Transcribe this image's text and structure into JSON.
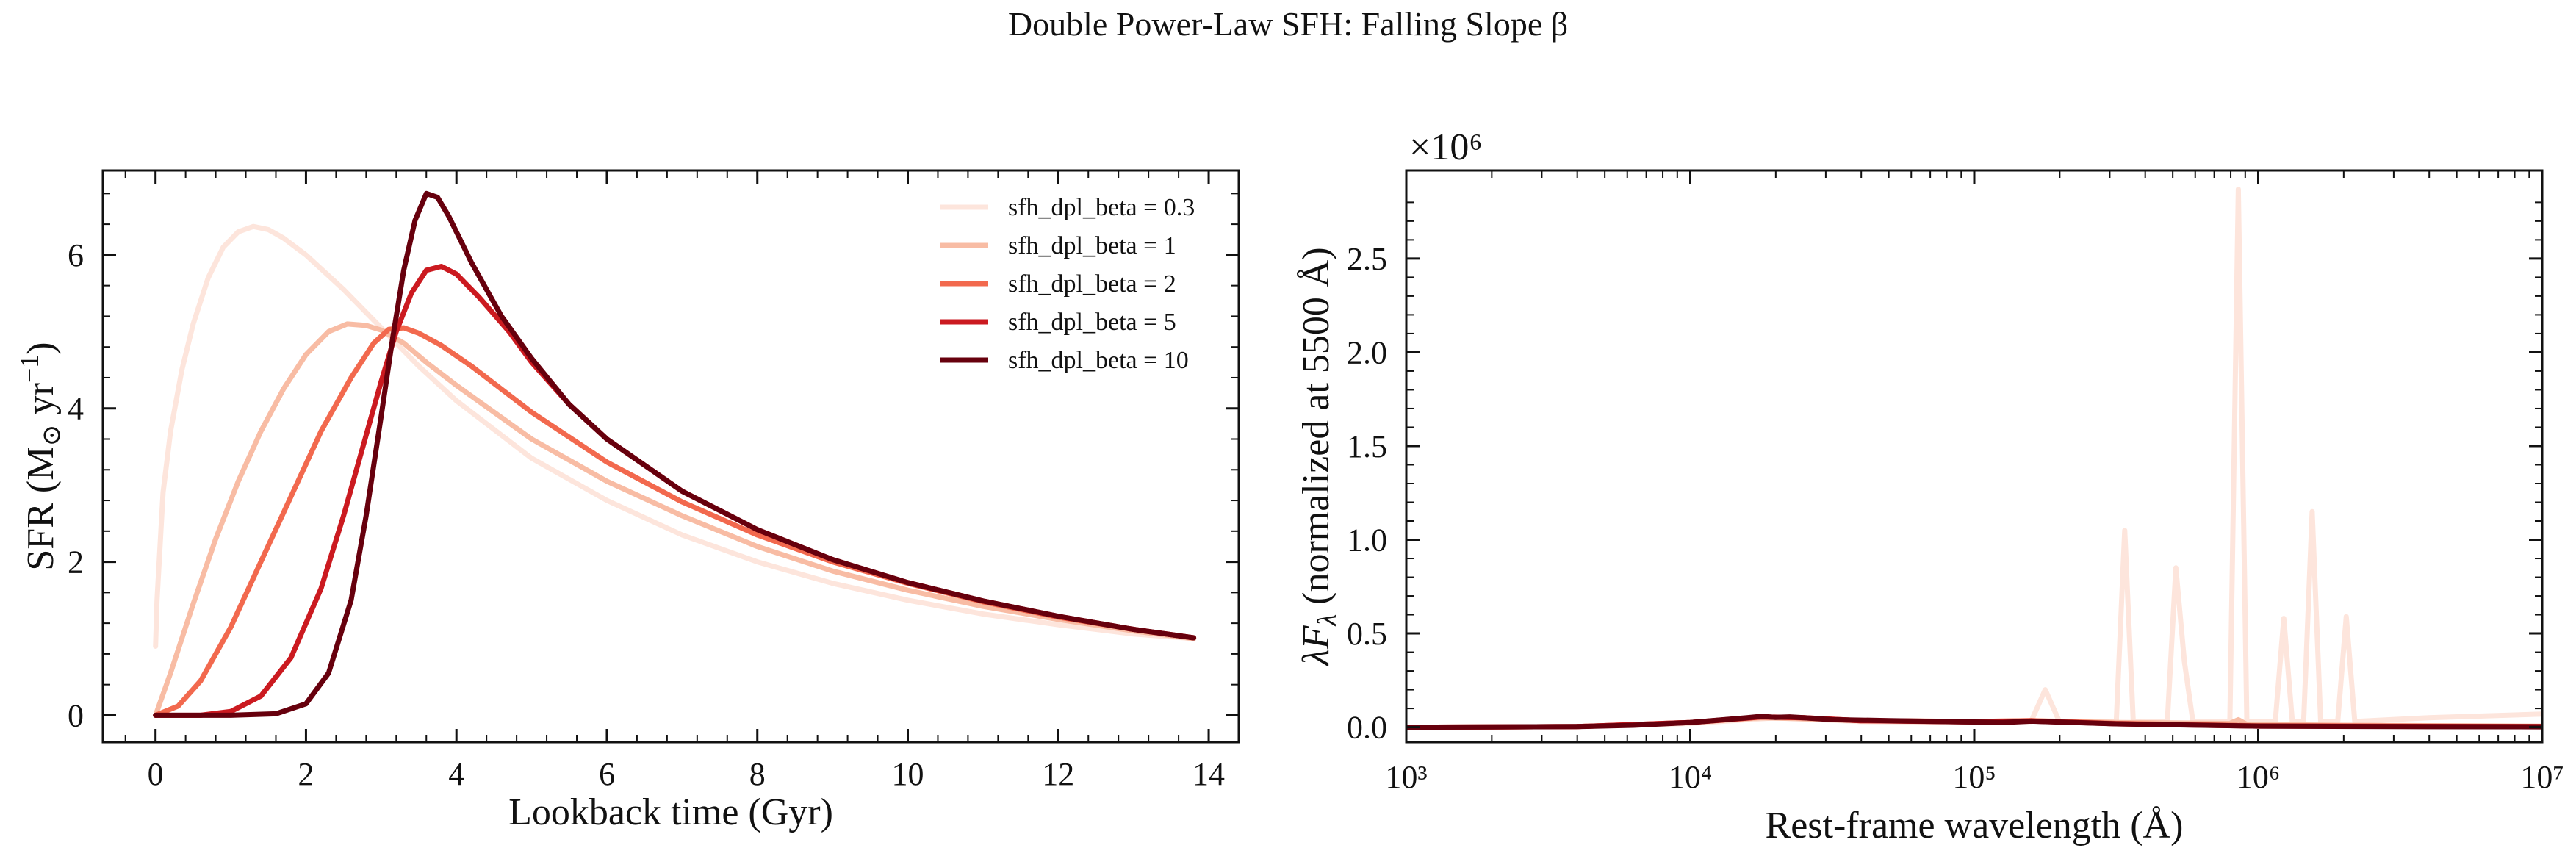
{
  "figure": {
    "suptitle": "Double Power-Law SFH: Falling Slope β"
  },
  "chart_data": [
    {
      "type": "line",
      "xlabel": "Lookback time (Gyr)",
      "ylabel_main": "SFR (M",
      "ylabel_sub": "⊙",
      "ylabel_unit": " yr",
      "ylabel_sup": "−1",
      "ylabel_close": ")",
      "xlim": [
        -0.7,
        14.4
      ],
      "ylim": [
        -0.35,
        7.1
      ],
      "xticks": [
        0,
        2,
        4,
        6,
        8,
        10,
        12,
        14
      ],
      "xtick_labels": [
        "0",
        "2",
        "4",
        "6",
        "8",
        "10",
        "12",
        "14"
      ],
      "yticks": [
        0,
        2,
        4,
        6
      ],
      "ytick_labels": [
        "0",
        "2",
        "4",
        "6"
      ],
      "legend_position": "top-right",
      "series": [
        {
          "name": "sfh_dpl_beta = 0.3",
          "color": "#fde5dc",
          "points": [
            [
              0.0,
              0.9
            ],
            [
              0.02,
              1.5
            ],
            [
              0.1,
              2.9
            ],
            [
              0.2,
              3.7
            ],
            [
              0.35,
              4.5
            ],
            [
              0.5,
              5.1
            ],
            [
              0.7,
              5.7
            ],
            [
              0.9,
              6.1
            ],
            [
              1.1,
              6.3
            ],
            [
              1.3,
              6.37
            ],
            [
              1.5,
              6.33
            ],
            [
              1.7,
              6.22
            ],
            [
              2.0,
              6.0
            ],
            [
              2.5,
              5.55
            ],
            [
              3.0,
              5.05
            ],
            [
              3.5,
              4.55
            ],
            [
              4.0,
              4.1
            ],
            [
              5.0,
              3.35
            ],
            [
              6.0,
              2.8
            ],
            [
              7.0,
              2.35
            ],
            [
              8.0,
              2.0
            ],
            [
              9.0,
              1.72
            ],
            [
              10.0,
              1.5
            ],
            [
              11.0,
              1.32
            ],
            [
              12.0,
              1.18
            ],
            [
              13.0,
              1.06
            ],
            [
              13.8,
              1.0
            ]
          ]
        },
        {
          "name": "sfh_dpl_beta = 1",
          "color": "#f8bca4",
          "points": [
            [
              0.0,
              0.0
            ],
            [
              0.2,
              0.55
            ],
            [
              0.5,
              1.45
            ],
            [
              0.8,
              2.3
            ],
            [
              1.1,
              3.05
            ],
            [
              1.4,
              3.7
            ],
            [
              1.7,
              4.25
            ],
            [
              2.0,
              4.7
            ],
            [
              2.3,
              5.0
            ],
            [
              2.55,
              5.1
            ],
            [
              2.8,
              5.08
            ],
            [
              3.0,
              5.02
            ],
            [
              3.3,
              4.85
            ],
            [
              3.6,
              4.6
            ],
            [
              4.0,
              4.3
            ],
            [
              4.5,
              3.95
            ],
            [
              5.0,
              3.6
            ],
            [
              6.0,
              3.05
            ],
            [
              7.0,
              2.6
            ],
            [
              8.0,
              2.2
            ],
            [
              9.0,
              1.88
            ],
            [
              10.0,
              1.63
            ],
            [
              11.0,
              1.42
            ],
            [
              12.0,
              1.25
            ],
            [
              13.0,
              1.1
            ],
            [
              13.8,
              1.0
            ]
          ]
        },
        {
          "name": "sfh_dpl_beta = 2",
          "color": "#f2694e",
          "points": [
            [
              0.0,
              0.0
            ],
            [
              0.3,
              0.12
            ],
            [
              0.6,
              0.45
            ],
            [
              1.0,
              1.15
            ],
            [
              1.4,
              2.0
            ],
            [
              1.8,
              2.85
            ],
            [
              2.2,
              3.7
            ],
            [
              2.6,
              4.4
            ],
            [
              2.9,
              4.85
            ],
            [
              3.1,
              5.03
            ],
            [
              3.3,
              5.05
            ],
            [
              3.5,
              4.98
            ],
            [
              3.8,
              4.82
            ],
            [
              4.2,
              4.55
            ],
            [
              4.6,
              4.25
            ],
            [
              5.0,
              3.95
            ],
            [
              6.0,
              3.3
            ],
            [
              7.0,
              2.78
            ],
            [
              8.0,
              2.35
            ],
            [
              9.0,
              2.0
            ],
            [
              10.0,
              1.72
            ],
            [
              11.0,
              1.48
            ],
            [
              12.0,
              1.28
            ],
            [
              13.0,
              1.12
            ],
            [
              13.8,
              1.01
            ]
          ]
        },
        {
          "name": "sfh_dpl_beta = 5",
          "color": "#cb1a20",
          "points": [
            [
              0.0,
              0.0
            ],
            [
              0.6,
              0.0
            ],
            [
              1.0,
              0.05
            ],
            [
              1.4,
              0.25
            ],
            [
              1.8,
              0.75
            ],
            [
              2.2,
              1.65
            ],
            [
              2.5,
              2.6
            ],
            [
              2.8,
              3.65
            ],
            [
              3.0,
              4.35
            ],
            [
              3.2,
              5.0
            ],
            [
              3.4,
              5.5
            ],
            [
              3.6,
              5.8
            ],
            [
              3.8,
              5.85
            ],
            [
              4.0,
              5.75
            ],
            [
              4.3,
              5.45
            ],
            [
              4.7,
              5.0
            ],
            [
              5.0,
              4.6
            ],
            [
              5.5,
              4.05
            ],
            [
              6.0,
              3.6
            ],
            [
              7.0,
              2.92
            ],
            [
              8.0,
              2.42
            ],
            [
              9.0,
              2.03
            ],
            [
              10.0,
              1.73
            ],
            [
              11.0,
              1.49
            ],
            [
              12.0,
              1.29
            ],
            [
              13.0,
              1.12
            ],
            [
              13.8,
              1.01
            ]
          ]
        },
        {
          "name": "sfh_dpl_beta = 10",
          "color": "#67000d",
          "points": [
            [
              0.0,
              0.0
            ],
            [
              1.0,
              0.0
            ],
            [
              1.6,
              0.02
            ],
            [
              2.0,
              0.15
            ],
            [
              2.3,
              0.55
            ],
            [
              2.6,
              1.5
            ],
            [
              2.8,
              2.6
            ],
            [
              3.0,
              3.9
            ],
            [
              3.15,
              4.9
            ],
            [
              3.3,
              5.8
            ],
            [
              3.45,
              6.45
            ],
            [
              3.6,
              6.8
            ],
            [
              3.75,
              6.75
            ],
            [
              3.9,
              6.5
            ],
            [
              4.2,
              5.9
            ],
            [
              4.6,
              5.2
            ],
            [
              5.0,
              4.65
            ],
            [
              5.5,
              4.05
            ],
            [
              6.0,
              3.6
            ],
            [
              7.0,
              2.92
            ],
            [
              8.0,
              2.42
            ],
            [
              9.0,
              2.03
            ],
            [
              10.0,
              1.73
            ],
            [
              11.0,
              1.49
            ],
            [
              12.0,
              1.29
            ],
            [
              13.0,
              1.12
            ],
            [
              13.8,
              1.01
            ]
          ]
        }
      ]
    },
    {
      "type": "line",
      "xlabel": "Rest-frame wavelength (Å)",
      "ylabel_main": "λF",
      "ylabel_sub": "λ",
      "ylabel_rest": " (normalized at 5500 Å)",
      "offset_text": "×10⁶",
      "xscale": "log",
      "xlim_log10": [
        3,
        7
      ],
      "ylim": [
        -0.08,
        2.97
      ],
      "xticks_log10": [
        3,
        4,
        5,
        6,
        7
      ],
      "xtick_labels": [
        "10³",
        "10⁴",
        "10⁵",
        "10⁶",
        "10⁷"
      ],
      "yticks": [
        0.0,
        0.5,
        1.0,
        1.5,
        2.0,
        2.5
      ],
      "ytick_labels": [
        "0.0",
        "0.5",
        "1.0",
        "1.5",
        "2.0",
        "2.5"
      ],
      "series": [
        {
          "name": "sfh_dpl_beta = 0.3",
          "color": "#fde5dc",
          "points": [
            [
              3.0,
              0.0
            ],
            [
              3.6,
              0.003
            ],
            [
              4.0,
              0.02
            ],
            [
              4.3,
              0.05
            ],
            [
              4.6,
              0.03
            ],
            [
              5.0,
              0.025
            ],
            [
              5.2,
              0.03
            ],
            [
              5.25,
              0.2
            ],
            [
              5.3,
              0.03
            ],
            [
              5.5,
              0.03
            ],
            [
              5.53,
              1.05
            ],
            [
              5.56,
              0.03
            ],
            [
              5.68,
              0.03
            ],
            [
              5.71,
              0.85
            ],
            [
              5.74,
              0.35
            ],
            [
              5.77,
              0.03
            ],
            [
              5.9,
              0.03
            ],
            [
              5.93,
              2.87
            ],
            [
              5.96,
              0.03
            ],
            [
              6.06,
              0.03
            ],
            [
              6.09,
              0.58
            ],
            [
              6.12,
              0.03
            ],
            [
              6.16,
              0.03
            ],
            [
              6.19,
              1.15
            ],
            [
              6.22,
              0.03
            ],
            [
              6.28,
              0.03
            ],
            [
              6.31,
              0.59
            ],
            [
              6.34,
              0.03
            ],
            [
              6.6,
              0.05
            ],
            [
              6.8,
              0.06
            ],
            [
              7.0,
              0.07
            ]
          ]
        },
        {
          "name": "sfh_dpl_beta = 1",
          "color": "#f8bca4",
          "points": [
            [
              3.0,
              0.0
            ],
            [
              3.6,
              0.003
            ],
            [
              4.0,
              0.025
            ],
            [
              4.25,
              0.05
            ],
            [
              4.4,
              0.045
            ],
            [
              4.6,
              0.035
            ],
            [
              5.0,
              0.03
            ],
            [
              5.2,
              0.035
            ],
            [
              5.5,
              0.025
            ],
            [
              5.9,
              0.02
            ],
            [
              5.93,
              0.04
            ],
            [
              5.96,
              0.015
            ],
            [
              6.3,
              0.01
            ],
            [
              7.0,
              0.005
            ]
          ]
        },
        {
          "name": "sfh_dpl_beta = 2",
          "color": "#f2694e",
          "points": [
            [
              3.0,
              0.0
            ],
            [
              3.6,
              0.003
            ],
            [
              4.0,
              0.025
            ],
            [
              4.25,
              0.055
            ],
            [
              4.4,
              0.05
            ],
            [
              4.6,
              0.035
            ],
            [
              5.0,
              0.03
            ],
            [
              5.2,
              0.035
            ],
            [
              5.5,
              0.02
            ],
            [
              6.0,
              0.008
            ],
            [
              7.0,
              0.004
            ]
          ]
        },
        {
          "name": "sfh_dpl_beta = 5",
          "color": "#cb1a20",
          "points": [
            [
              3.0,
              0.0
            ],
            [
              3.6,
              0.003
            ],
            [
              4.0,
              0.025
            ],
            [
              4.25,
              0.055
            ],
            [
              4.4,
              0.05
            ],
            [
              4.6,
              0.035
            ],
            [
              5.0,
              0.028
            ],
            [
              5.2,
              0.033
            ],
            [
              5.5,
              0.018
            ],
            [
              6.0,
              0.006
            ],
            [
              7.0,
              0.003
            ]
          ]
        },
        {
          "name": "sfh_dpl_beta = 10",
          "color": "#67000d",
          "points": [
            [
              3.0,
              0.0
            ],
            [
              3.6,
              0.003
            ],
            [
              3.8,
              0.01
            ],
            [
              4.0,
              0.025
            ],
            [
              4.2,
              0.05
            ],
            [
              4.25,
              0.058
            ],
            [
              4.3,
              0.052
            ],
            [
              4.35,
              0.055
            ],
            [
              4.4,
              0.05
            ],
            [
              4.5,
              0.04
            ],
            [
              4.7,
              0.035
            ],
            [
              5.0,
              0.028
            ],
            [
              5.1,
              0.025
            ],
            [
              5.2,
              0.032
            ],
            [
              5.35,
              0.025
            ],
            [
              5.5,
              0.018
            ],
            [
              5.8,
              0.01
            ],
            [
              6.0,
              0.006
            ],
            [
              6.5,
              0.003
            ],
            [
              7.0,
              0.002
            ]
          ]
        }
      ]
    }
  ]
}
